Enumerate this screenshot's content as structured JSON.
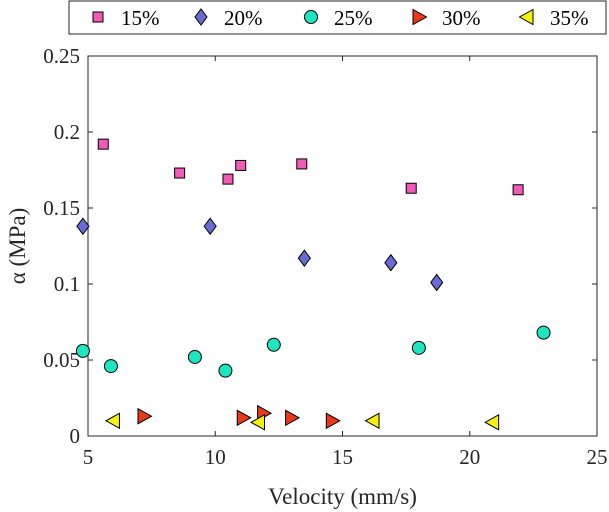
{
  "chart_data": {
    "type": "scatter",
    "xlabel": "Velocity (mm/s)",
    "ylabel": "α (MPa)",
    "xlim": [
      5,
      25
    ],
    "ylim": [
      0,
      0.25
    ],
    "xticks": [
      5,
      10,
      15,
      20,
      25
    ],
    "xtick_labels": [
      "5",
      "10",
      "15",
      "20",
      "25"
    ],
    "yticks": [
      0,
      0.05,
      0.1,
      0.15,
      0.2,
      0.25
    ],
    "ytick_labels": [
      "0",
      "0.05",
      "0.1",
      "0.15",
      "0.2",
      "0.25"
    ],
    "grid": false,
    "legend": {
      "position": "top",
      "orientation": "horizontal"
    },
    "series": [
      {
        "name": "15%",
        "marker": "square",
        "color": "#f25ab8",
        "points": [
          {
            "x": 5.6,
            "y": 0.192
          },
          {
            "x": 8.6,
            "y": 0.173
          },
          {
            "x": 10.5,
            "y": 0.169
          },
          {
            "x": 11.0,
            "y": 0.178
          },
          {
            "x": 13.4,
            "y": 0.179
          },
          {
            "x": 17.7,
            "y": 0.163
          },
          {
            "x": 21.9,
            "y": 0.162
          }
        ]
      },
      {
        "name": "20%",
        "marker": "diamond",
        "color": "#6a6ad4",
        "points": [
          {
            "x": 4.8,
            "y": 0.138
          },
          {
            "x": 9.8,
            "y": 0.138
          },
          {
            "x": 13.5,
            "y": 0.117
          },
          {
            "x": 16.9,
            "y": 0.114
          },
          {
            "x": 18.7,
            "y": 0.101
          }
        ]
      },
      {
        "name": "25%",
        "marker": "circle",
        "color": "#1ee6c2",
        "points": [
          {
            "x": 4.8,
            "y": 0.056
          },
          {
            "x": 5.9,
            "y": 0.046
          },
          {
            "x": 9.2,
            "y": 0.052
          },
          {
            "x": 10.4,
            "y": 0.043
          },
          {
            "x": 12.3,
            "y": 0.06
          },
          {
            "x": 18.0,
            "y": 0.058
          },
          {
            "x": 22.9,
            "y": 0.068
          }
        ]
      },
      {
        "name": "30%",
        "marker": "triangle-right",
        "color": "#e83a1a",
        "points": [
          {
            "x": 7.2,
            "y": 0.013
          },
          {
            "x": 11.1,
            "y": 0.012
          },
          {
            "x": 11.9,
            "y": 0.015
          },
          {
            "x": 13.0,
            "y": 0.012
          },
          {
            "x": 14.6,
            "y": 0.01
          }
        ]
      },
      {
        "name": "35%",
        "marker": "triangle-left",
        "color": "#f5f00c",
        "points": [
          {
            "x": 6.0,
            "y": 0.01
          },
          {
            "x": 11.7,
            "y": 0.009
          },
          {
            "x": 16.2,
            "y": 0.01
          },
          {
            "x": 20.9,
            "y": 0.009
          }
        ]
      }
    ]
  }
}
